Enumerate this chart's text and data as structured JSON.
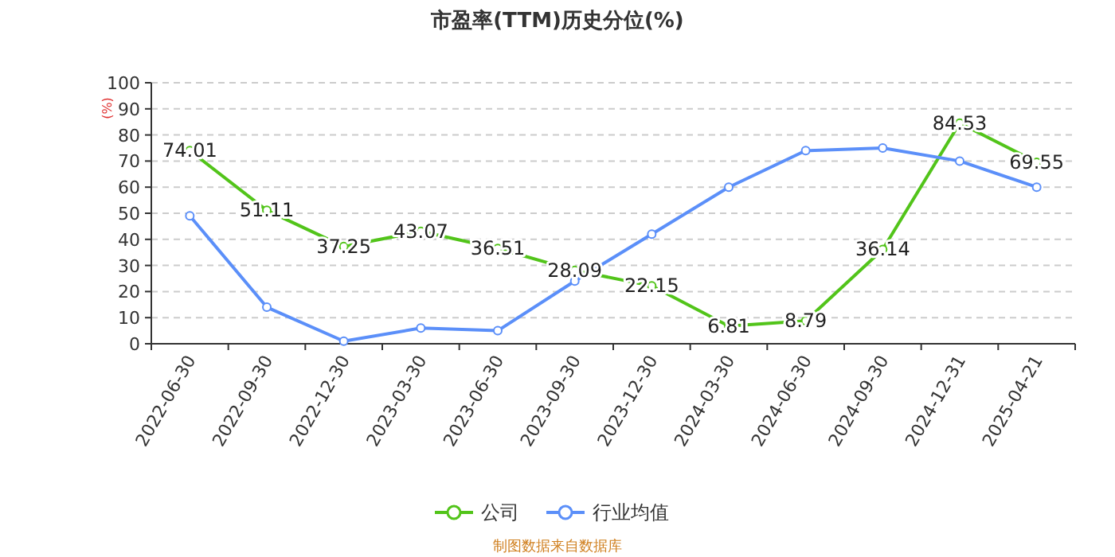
{
  "chart_data": {
    "type": "line",
    "title": "市盈率(TTM)历史分位(%)",
    "ylabel": "(%)",
    "categories": [
      "2022-06-30",
      "2022-09-30",
      "2022-12-30",
      "2023-03-30",
      "2023-06-30",
      "2023-09-30",
      "2023-12-30",
      "2024-03-30",
      "2024-06-30",
      "2024-09-30",
      "2024-12-31",
      "2025-04-21"
    ],
    "series": [
      {
        "name": "公司",
        "color": "#52c41a",
        "values": [
          74.01,
          51.11,
          37.25,
          43.07,
          36.51,
          28.09,
          22.15,
          6.81,
          8.79,
          36.14,
          84.53,
          69.55
        ],
        "value_labels": [
          "74.01",
          "51.11",
          "37.25",
          "43.07",
          "36.51",
          "28.09",
          "22.15",
          "6.81",
          "8.79",
          "36.14",
          "84.53",
          "69.55"
        ]
      },
      {
        "name": "行业均值",
        "color": "#5b8ff9",
        "values": [
          49,
          14,
          1,
          6,
          5,
          24,
          42,
          60,
          74,
          75,
          70,
          60
        ]
      }
    ],
    "ylim": [
      0,
      100
    ],
    "yticks": [
      0,
      10,
      20,
      30,
      40,
      50,
      60,
      70,
      80,
      90,
      100
    ],
    "grid": "y",
    "legend": "bottom",
    "marker": "circle",
    "line_style": "solid",
    "annotations": [
      "制图数据来自数据库"
    ]
  }
}
